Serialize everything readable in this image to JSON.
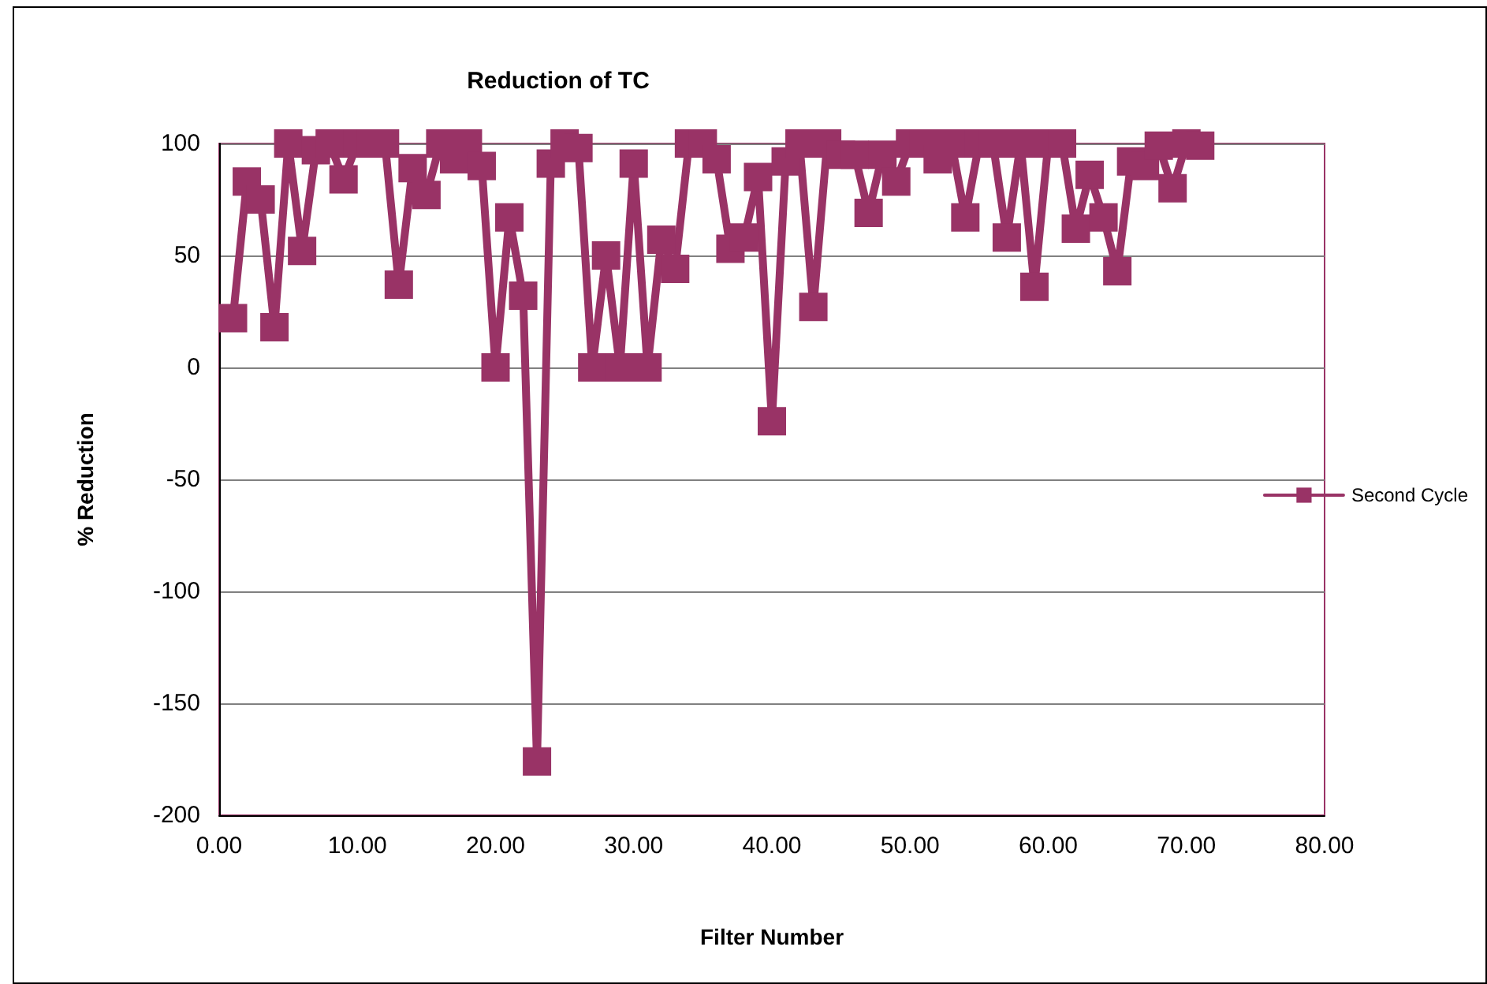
{
  "chart_data": {
    "type": "line",
    "title": "Reduction of TC",
    "xlabel": "Filter Number",
    "ylabel": "% Reduction",
    "x": [
      1,
      2,
      3,
      4,
      5,
      6,
      7,
      8,
      9,
      10,
      11,
      12,
      13,
      14,
      15,
      16,
      17,
      18,
      19,
      20,
      21,
      22,
      23,
      24,
      25,
      26,
      27,
      28,
      29,
      30,
      31,
      32,
      33,
      34,
      35,
      36,
      37,
      38,
      39,
      40,
      41,
      42,
      43,
      44,
      45,
      46,
      47,
      48,
      49,
      50,
      51,
      52,
      53,
      54,
      55,
      56,
      57,
      58,
      59,
      60,
      61,
      62,
      63,
      64,
      65,
      66,
      67,
      68,
      69,
      70,
      71
    ],
    "series": [
      {
        "name": "Second Cycle",
        "color": "#993366",
        "values": [
          22,
          83,
          75,
          18,
          100,
          52,
          97,
          100,
          84,
          100,
          100,
          100,
          37,
          89,
          77,
          100,
          93,
          100,
          90,
          0,
          67,
          32,
          -176,
          91,
          100,
          98,
          0,
          50,
          0,
          91,
          0,
          57,
          44,
          100,
          100,
          93,
          53,
          58,
          85,
          -24,
          92,
          100,
          27,
          100,
          95,
          95,
          69,
          95,
          83,
          100,
          100,
          93,
          100,
          67,
          100,
          100,
          58,
          100,
          36,
          100,
          100,
          62,
          86,
          67,
          43,
          92,
          90,
          99,
          80,
          100,
          99
        ]
      }
    ],
    "xlim": [
      0,
      80
    ],
    "xticks": [
      {
        "value": 0,
        "label": "0.00"
      },
      {
        "value": 10,
        "label": "10.00"
      },
      {
        "value": 20,
        "label": "20.00"
      },
      {
        "value": 30,
        "label": "30.00"
      },
      {
        "value": 40,
        "label": "40.00"
      },
      {
        "value": 50,
        "label": "50.00"
      },
      {
        "value": 60,
        "label": "60.00"
      },
      {
        "value": 70,
        "label": "70.00"
      },
      {
        "value": 80,
        "label": "80.00"
      }
    ],
    "ylim": [
      -200,
      100
    ],
    "yticks": [
      -200,
      -150,
      -100,
      -50,
      0,
      50,
      100
    ],
    "grid": "y",
    "legend": "right",
    "marker": "square",
    "line_style": "solid"
  }
}
